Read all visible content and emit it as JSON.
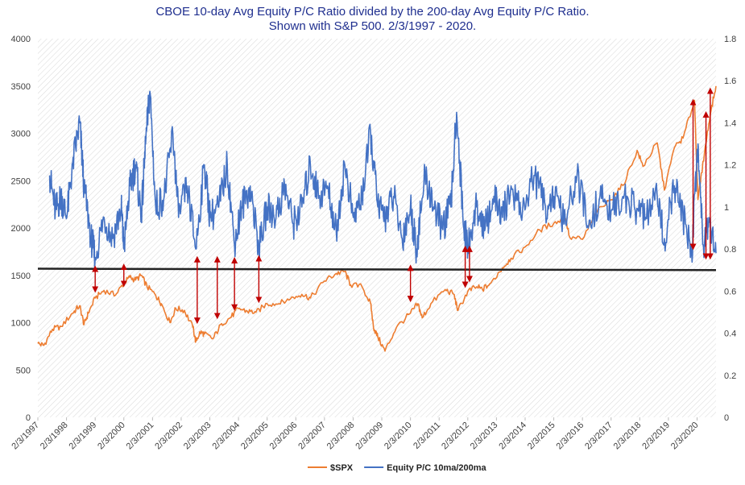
{
  "chart_data": {
    "type": "line",
    "title": "CBOE 10-day Avg Equity P/C Ratio divided by the 200-day Avg Equity P/C Ratio.",
    "subtitle": "Shown with S&P 500. 2/3/1997 - 2020.",
    "x_range": [
      1997.09,
      2020.75
    ],
    "x_ticks": [
      {
        "label": "2/3/1997",
        "x": 1997.09
      },
      {
        "label": "2/3/1998",
        "x": 1998.09
      },
      {
        "label": "2/3/1999",
        "x": 1999.09
      },
      {
        "label": "2/3/2000",
        "x": 2000.09
      },
      {
        "label": "2/3/2001",
        "x": 2001.09
      },
      {
        "label": "2/3/2002",
        "x": 2002.09
      },
      {
        "label": "2/3/2003",
        "x": 2003.09
      },
      {
        "label": "2/3/2004",
        "x": 2004.09
      },
      {
        "label": "2/3/2005",
        "x": 2005.09
      },
      {
        "label": "2/3/2006",
        "x": 2006.09
      },
      {
        "label": "2/3/2007",
        "x": 2007.09
      },
      {
        "label": "2/3/2008",
        "x": 2008.09
      },
      {
        "label": "2/3/2009",
        "x": 2009.09
      },
      {
        "label": "2/3/2010",
        "x": 2010.09
      },
      {
        "label": "2/3/2011",
        "x": 2011.09
      },
      {
        "label": "2/3/2012",
        "x": 2012.09
      },
      {
        "label": "2/3/2013",
        "x": 2013.09
      },
      {
        "label": "2/3/2014",
        "x": 2014.09
      },
      {
        "label": "2/3/2015",
        "x": 2015.09
      },
      {
        "label": "2/3/2016",
        "x": 2016.09
      },
      {
        "label": "2/3/2017",
        "x": 2017.09
      },
      {
        "label": "2/3/2018",
        "x": 2018.09
      },
      {
        "label": "2/3/2019",
        "x": 2019.09
      },
      {
        "label": "2/3/2020",
        "x": 2020.09
      }
    ],
    "y_left": {
      "min": 0,
      "max": 4000,
      "ticks": [
        "0",
        "500",
        "1000",
        "1500",
        "2000",
        "2500",
        "3000",
        "3500",
        "4000"
      ]
    },
    "y_right": {
      "min": 0,
      "max": 1.8,
      "ticks": [
        "0",
        "0.2",
        "0.4",
        "0.6",
        "0.8",
        "1",
        "1.2",
        "1.4",
        "1.6",
        "1.8"
      ]
    },
    "grid": "diagonal hatch background",
    "legend_position": "bottom",
    "series": [
      {
        "name": "$SPX",
        "axis": "left",
        "color": "#ed7d31",
        "points": [
          [
            1997.09,
            780
          ],
          [
            1997.3,
            760
          ],
          [
            1997.6,
            930
          ],
          [
            1997.9,
            960
          ],
          [
            1998.3,
            1100
          ],
          [
            1998.55,
            1180
          ],
          [
            1998.7,
            980
          ],
          [
            1998.85,
            1100
          ],
          [
            1999.09,
            1260
          ],
          [
            1999.4,
            1340
          ],
          [
            1999.8,
            1290
          ],
          [
            2000.09,
            1420
          ],
          [
            2000.3,
            1480
          ],
          [
            2000.5,
            1450
          ],
          [
            2000.7,
            1500
          ],
          [
            2000.9,
            1380
          ],
          [
            2001.2,
            1290
          ],
          [
            2001.4,
            1200
          ],
          [
            2001.7,
            1000
          ],
          [
            2001.9,
            1150
          ],
          [
            2002.2,
            1130
          ],
          [
            2002.5,
            950
          ],
          [
            2002.6,
            800
          ],
          [
            2002.75,
            900
          ],
          [
            2002.9,
            880
          ],
          [
            2003.2,
            830
          ],
          [
            2003.5,
            990
          ],
          [
            2003.8,
            1050
          ],
          [
            2004.09,
            1150
          ],
          [
            2004.4,
            1120
          ],
          [
            2004.7,
            1110
          ],
          [
            2005.09,
            1200
          ],
          [
            2005.5,
            1200
          ],
          [
            2005.9,
            1250
          ],
          [
            2006.3,
            1300
          ],
          [
            2006.6,
            1260
          ],
          [
            2007.09,
            1440
          ],
          [
            2007.5,
            1520
          ],
          [
            2007.8,
            1540
          ],
          [
            2008.0,
            1400
          ],
          [
            2008.4,
            1380
          ],
          [
            2008.7,
            1200
          ],
          [
            2008.8,
            950
          ],
          [
            2008.95,
            850
          ],
          [
            2009.2,
            700
          ],
          [
            2009.6,
            950
          ],
          [
            2010.09,
            1100
          ],
          [
            2010.35,
            1200
          ],
          [
            2010.5,
            1050
          ],
          [
            2010.8,
            1200
          ],
          [
            2011.3,
            1350
          ],
          [
            2011.6,
            1300
          ],
          [
            2011.75,
            1130
          ],
          [
            2012.09,
            1330
          ],
          [
            2012.4,
            1380
          ],
          [
            2012.6,
            1350
          ],
          [
            2012.9,
            1420
          ],
          [
            2013.3,
            1580
          ],
          [
            2013.6,
            1680
          ],
          [
            2014.09,
            1800
          ],
          [
            2014.6,
            1980
          ],
          [
            2015.09,
            2050
          ],
          [
            2015.5,
            2100
          ],
          [
            2015.65,
            1900
          ],
          [
            2016.09,
            1880
          ],
          [
            2016.6,
            2170
          ],
          [
            2017.09,
            2300
          ],
          [
            2017.5,
            2450
          ],
          [
            2018.0,
            2820
          ],
          [
            2018.2,
            2650
          ],
          [
            2018.7,
            2900
          ],
          [
            2018.95,
            2400
          ],
          [
            2019.3,
            2850
          ],
          [
            2019.6,
            2950
          ],
          [
            2020.0,
            3350
          ],
          [
            2020.12,
            2300
          ],
          [
            2020.35,
            2800
          ],
          [
            2020.55,
            3200
          ],
          [
            2020.75,
            3500
          ]
        ]
      },
      {
        "name": "Equity P/C 10ma/200ma",
        "axis": "right",
        "color": "#4472c4",
        "points": [
          [
            1997.5,
            1.15
          ],
          [
            1997.7,
            0.98
          ],
          [
            1997.9,
            1.05
          ],
          [
            1998.1,
            0.95
          ],
          [
            1998.3,
            1.2
          ],
          [
            1998.55,
            1.4
          ],
          [
            1998.7,
            1.1
          ],
          [
            1998.95,
            0.85
          ],
          [
            1999.09,
            0.76
          ],
          [
            1999.4,
            0.95
          ],
          [
            1999.7,
            0.85
          ],
          [
            2000.0,
            1.0
          ],
          [
            2000.09,
            0.8
          ],
          [
            2000.3,
            1.1
          ],
          [
            2000.5,
            1.2
          ],
          [
            2000.7,
            0.95
          ],
          [
            2000.85,
            1.3
          ],
          [
            2001.0,
            1.55
          ],
          [
            2001.2,
            1.0
          ],
          [
            2001.5,
            1.05
          ],
          [
            2001.8,
            1.35
          ],
          [
            2002.0,
            0.95
          ],
          [
            2002.3,
            1.1
          ],
          [
            2002.6,
            0.8
          ],
          [
            2002.9,
            1.2
          ],
          [
            2003.1,
            0.95
          ],
          [
            2003.4,
            1.0
          ],
          [
            2003.7,
            1.2
          ],
          [
            2003.95,
            0.82
          ],
          [
            2004.2,
            1.0
          ],
          [
            2004.5,
            1.1
          ],
          [
            2004.8,
            0.8
          ],
          [
            2005.1,
            1.0
          ],
          [
            2005.4,
            0.95
          ],
          [
            2005.7,
            1.1
          ],
          [
            2006.0,
            0.92
          ],
          [
            2006.3,
            1.0
          ],
          [
            2006.6,
            1.2
          ],
          [
            2006.9,
            1.05
          ],
          [
            2007.2,
            1.1
          ],
          [
            2007.5,
            0.88
          ],
          [
            2007.8,
            1.2
          ],
          [
            2008.1,
            0.95
          ],
          [
            2008.4,
            1.05
          ],
          [
            2008.7,
            1.35
          ],
          [
            2008.95,
            1.0
          ],
          [
            2009.2,
            0.95
          ],
          [
            2009.5,
            1.05
          ],
          [
            2009.8,
            0.85
          ],
          [
            2010.09,
            1.0
          ],
          [
            2010.3,
            0.8
          ],
          [
            2010.6,
            1.15
          ],
          [
            2010.9,
            1.0
          ],
          [
            2011.2,
            0.9
          ],
          [
            2011.5,
            1.0
          ],
          [
            2011.7,
            1.45
          ],
          [
            2011.95,
            0.9
          ],
          [
            2012.09,
            0.81
          ],
          [
            2012.4,
            1.0
          ],
          [
            2012.7,
            0.9
          ],
          [
            2013.0,
            1.05
          ],
          [
            2013.3,
            0.95
          ],
          [
            2013.6,
            1.1
          ],
          [
            2014.0,
            0.98
          ],
          [
            2014.4,
            1.15
          ],
          [
            2014.8,
            1.0
          ],
          [
            2015.09,
            1.05
          ],
          [
            2015.5,
            0.92
          ],
          [
            2015.9,
            1.15
          ],
          [
            2016.3,
            0.9
          ],
          [
            2016.7,
            1.05
          ],
          [
            2017.09,
            0.98
          ],
          [
            2017.5,
            1.05
          ],
          [
            2017.9,
            1.0
          ],
          [
            2018.3,
            0.95
          ],
          [
            2018.7,
            1.05
          ],
          [
            2018.95,
            0.85
          ],
          [
            2019.3,
            1.1
          ],
          [
            2019.6,
            0.95
          ],
          [
            2019.9,
            0.78
          ],
          [
            2020.12,
            1.3
          ],
          [
            2020.3,
            0.82
          ],
          [
            2020.5,
            0.95
          ],
          [
            2020.75,
            0.78
          ]
        ]
      }
    ],
    "reference_line": {
      "axis": "left",
      "y_start": 1570,
      "y_end": 1555,
      "color": "#222222"
    },
    "annotations": [
      {
        "x": 1999.09,
        "from": 1570,
        "to": 1350
      },
      {
        "x": 2000.09,
        "from": 1590,
        "to": 1410
      },
      {
        "x": 2002.65,
        "from": 1670,
        "to": 1020
      },
      {
        "x": 2003.35,
        "from": 1670,
        "to": 1070
      },
      {
        "x": 2003.95,
        "from": 1660,
        "to": 1160
      },
      {
        "x": 2004.8,
        "from": 1680,
        "to": 1240
      },
      {
        "x": 2010.09,
        "from": 1580,
        "to": 1250
      },
      {
        "x": 2012.0,
        "from": 1780,
        "to": 1400
      },
      {
        "x": 2012.15,
        "from": 1780,
        "to": 1460
      },
      {
        "x": 2019.95,
        "from": 3330,
        "to": 1800
      },
      {
        "x": 2020.4,
        "from": 3200,
        "to": 1700
      },
      {
        "x": 2020.55,
        "from": 3450,
        "to": 1700
      }
    ]
  }
}
